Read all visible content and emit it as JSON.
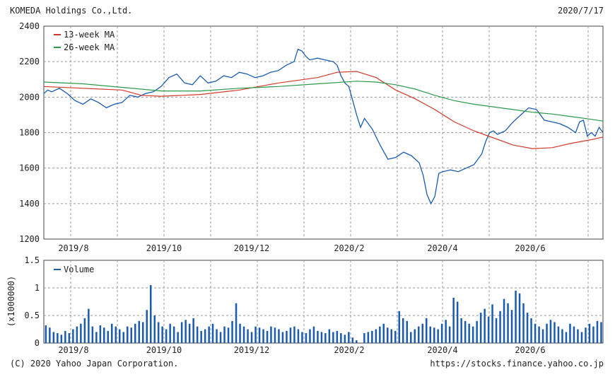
{
  "header": {
    "company": "KOMEDA Holdings Co.,Ltd.",
    "date": "2020/7/17"
  },
  "footer": {
    "copyright": "(C) 2020 Yahoo Japan Corporation.",
    "url": "https://stocks.finance.yahoo.co.jp"
  },
  "colors": {
    "price": "#1a5bb0",
    "ma13": "#d23a2a",
    "ma26": "#2a9a4a",
    "volume": "#1a5bb0",
    "grid": "#9a9a9a"
  },
  "chart_data": [
    {
      "type": "line",
      "x_ticks": [
        "2019/8",
        "2019/10",
        "2019/12",
        "2020/2",
        "2020/4",
        "2020/6"
      ],
      "ylim": [
        1200,
        2400
      ],
      "y_ticks": [
        "2400",
        "2200",
        "2000",
        "1800",
        "1600",
        "1400",
        "1200"
      ],
      "legend": [
        "13-week MA",
        "26-week MA"
      ],
      "series": [
        {
          "name": "",
          "color_key": "price",
          "points": [
            [
              0,
              2020
            ],
            [
              1,
              2040
            ],
            [
              2,
              2030
            ],
            [
              4,
              2050
            ],
            [
              6,
              2020
            ],
            [
              8,
              1980
            ],
            [
              10,
              1960
            ],
            [
              12,
              1990
            ],
            [
              14,
              1970
            ],
            [
              16,
              1940
            ],
            [
              18,
              1960
            ],
            [
              20,
              1970
            ],
            [
              22,
              2010
            ],
            [
              24,
              2000
            ],
            [
              26,
              2020
            ],
            [
              28,
              2030
            ],
            [
              30,
              2060
            ],
            [
              32,
              2110
            ],
            [
              34,
              2130
            ],
            [
              36,
              2080
            ],
            [
              38,
              2070
            ],
            [
              40,
              2120
            ],
            [
              42,
              2080
            ],
            [
              44,
              2090
            ],
            [
              46,
              2120
            ],
            [
              48,
              2110
            ],
            [
              50,
              2140
            ],
            [
              52,
              2130
            ],
            [
              54,
              2110
            ],
            [
              56,
              2120
            ],
            [
              58,
              2140
            ],
            [
              60,
              2150
            ],
            [
              62,
              2180
            ],
            [
              64,
              2200
            ],
            [
              65,
              2270
            ],
            [
              66,
              2260
            ],
            [
              67,
              2230
            ],
            [
              68,
              2210
            ],
            [
              70,
              2220
            ],
            [
              72,
              2210
            ],
            [
              74,
              2200
            ],
            [
              75,
              2180
            ],
            [
              76,
              2120
            ],
            [
              77,
              2080
            ],
            [
              78,
              2060
            ],
            [
              79,
              1980
            ],
            [
              80,
              1900
            ],
            [
              81,
              1830
            ],
            [
              82,
              1880
            ],
            [
              84,
              1820
            ],
            [
              86,
              1730
            ],
            [
              88,
              1650
            ],
            [
              90,
              1660
            ],
            [
              92,
              1690
            ],
            [
              94,
              1670
            ],
            [
              96,
              1630
            ],
            [
              97,
              1560
            ],
            [
              98,
              1450
            ],
            [
              99,
              1400
            ],
            [
              100,
              1440
            ],
            [
              101,
              1570
            ],
            [
              102,
              1580
            ],
            [
              104,
              1590
            ],
            [
              106,
              1580
            ],
            [
              108,
              1600
            ],
            [
              110,
              1620
            ],
            [
              112,
              1680
            ],
            [
              113,
              1750
            ],
            [
              114,
              1800
            ],
            [
              115,
              1810
            ],
            [
              116,
              1790
            ],
            [
              118,
              1810
            ],
            [
              120,
              1860
            ],
            [
              122,
              1900
            ],
            [
              124,
              1940
            ],
            [
              126,
              1930
            ],
            [
              127,
              1900
            ],
            [
              128,
              1870
            ],
            [
              130,
              1860
            ],
            [
              132,
              1850
            ],
            [
              134,
              1830
            ],
            [
              136,
              1800
            ],
            [
              137,
              1860
            ],
            [
              138,
              1870
            ],
            [
              139,
              1780
            ],
            [
              140,
              1800
            ],
            [
              141,
              1780
            ],
            [
              142,
              1830
            ],
            [
              143,
              1800
            ]
          ]
        },
        {
          "name": "13-week MA",
          "color_key": "ma13",
          "points": [
            [
              0,
              2060
            ],
            [
              10,
              2050
            ],
            [
              20,
              2040
            ],
            [
              25,
              2010
            ],
            [
              30,
              2005
            ],
            [
              40,
              2015
            ],
            [
              50,
              2040
            ],
            [
              60,
              2080
            ],
            [
              70,
              2110
            ],
            [
              75,
              2140
            ],
            [
              80,
              2145
            ],
            [
              85,
              2110
            ],
            [
              90,
              2040
            ],
            [
              95,
              1990
            ],
            [
              100,
              1930
            ],
            [
              105,
              1860
            ],
            [
              110,
              1810
            ],
            [
              115,
              1770
            ],
            [
              120,
              1730
            ],
            [
              125,
              1710
            ],
            [
              130,
              1715
            ],
            [
              135,
              1740
            ],
            [
              140,
              1760
            ],
            [
              143,
              1775
            ]
          ]
        },
        {
          "name": "26-week MA",
          "color_key": "ma26",
          "points": [
            [
              0,
              2085
            ],
            [
              10,
              2075
            ],
            [
              20,
              2055
            ],
            [
              30,
              2035
            ],
            [
              40,
              2035
            ],
            [
              50,
              2050
            ],
            [
              60,
              2060
            ],
            [
              70,
              2075
            ],
            [
              80,
              2090
            ],
            [
              85,
              2085
            ],
            [
              90,
              2070
            ],
            [
              95,
              2045
            ],
            [
              100,
              2010
            ],
            [
              105,
              1980
            ],
            [
              110,
              1960
            ],
            [
              115,
              1945
            ],
            [
              120,
              1930
            ],
            [
              125,
              1915
            ],
            [
              130,
              1905
            ],
            [
              135,
              1890
            ],
            [
              140,
              1875
            ],
            [
              143,
              1865
            ]
          ]
        }
      ]
    },
    {
      "type": "bar",
      "x_ticks": [
        "2019/8",
        "2019/10",
        "2019/12",
        "2020/2",
        "2020/4",
        "2020/6"
      ],
      "ylim": [
        0,
        1.5
      ],
      "y_ticks": [
        "1.5",
        "1",
        "0.5",
        "0"
      ],
      "ylabel": "(x1000000)",
      "legend": [
        "Volume"
      ],
      "values": [
        0.32,
        0.28,
        0.2,
        0.18,
        0.15,
        0.22,
        0.18,
        0.25,
        0.3,
        0.35,
        0.45,
        0.62,
        0.3,
        0.2,
        0.32,
        0.28,
        0.22,
        0.35,
        0.3,
        0.25,
        0.2,
        0.3,
        0.28,
        0.35,
        0.4,
        0.38,
        0.6,
        1.05,
        0.5,
        0.38,
        0.3,
        0.25,
        0.35,
        0.3,
        0.2,
        0.38,
        0.42,
        0.35,
        0.45,
        0.3,
        0.22,
        0.25,
        0.3,
        0.35,
        0.25,
        0.2,
        0.3,
        0.28,
        0.4,
        0.72,
        0.35,
        0.3,
        0.25,
        0.2,
        0.3,
        0.28,
        0.25,
        0.22,
        0.3,
        0.28,
        0.25,
        0.2,
        0.22,
        0.28,
        0.3,
        0.25,
        0.2,
        0.18,
        0.25,
        0.3,
        0.22,
        0.2,
        0.18,
        0.25,
        0.2,
        0.22,
        0.18,
        0.15,
        0.2,
        0.1,
        0.05,
        0.0,
        0.18,
        0.2,
        0.22,
        0.25,
        0.3,
        0.35,
        0.28,
        0.25,
        0.22,
        0.58,
        0.45,
        0.4,
        0.2,
        0.25,
        0.3,
        0.35,
        0.45,
        0.3,
        0.28,
        0.25,
        0.35,
        0.42,
        0.3,
        0.82,
        0.75,
        0.45,
        0.4,
        0.35,
        0.3,
        0.4,
        0.55,
        0.62,
        0.48,
        0.7,
        0.45,
        0.58,
        0.8,
        0.72,
        0.6,
        0.95,
        0.9,
        0.72,
        0.55,
        0.45,
        0.35,
        0.3,
        0.25,
        0.35,
        0.42,
        0.38,
        0.3,
        0.25,
        0.2,
        0.35,
        0.3,
        0.25,
        0.2,
        0.28,
        0.35,
        0.3,
        0.4,
        0.38
      ]
    }
  ]
}
